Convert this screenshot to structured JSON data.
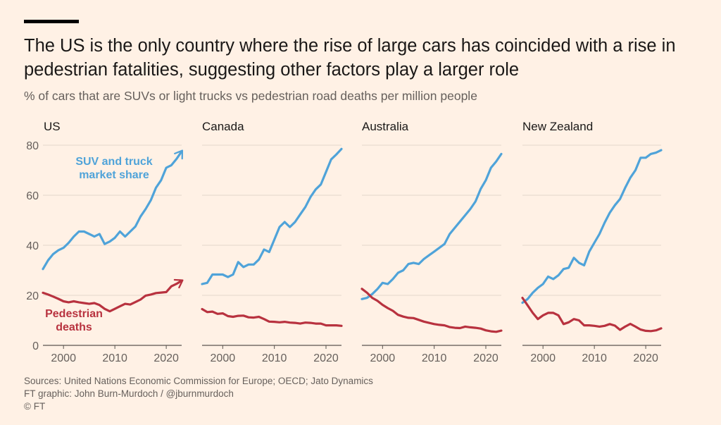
{
  "title": "The US is the only country where the rise of large cars has coincided with a rise in pedestrian fatalities, suggesting other factors play a larger role",
  "subtitle": "% of cars that are SUVs or light trucks vs pedestrian road deaths per million people",
  "footer": {
    "sources": "Sources: United Nations Economic Commission for Europe; OECD; Jato Dynamics",
    "credit": "FT graphic: John Burn-Murdoch / @jburnmurdoch",
    "copyright": "© FT"
  },
  "colors": {
    "suv": "#4FA3D9",
    "deaths": "#B8323F",
    "grid": "#E3D6CB",
    "axis": "#5A5550"
  },
  "chart_data": [
    {
      "type": "line",
      "title": "US",
      "xlim": [
        1996,
        2023
      ],
      "ylim": [
        0,
        80
      ],
      "yticks": [
        0,
        20,
        40,
        60,
        80
      ],
      "xticks": [
        2000,
        2010,
        2020
      ],
      "grid": true,
      "series": [
        {
          "name": "SUV and truck market share",
          "label": "SUV and truck market share",
          "color": "#4FA3D9",
          "arrow": true,
          "x": [
            1996,
            1997,
            1998,
            1999,
            2000,
            2001,
            2002,
            2003,
            2004,
            2005,
            2006,
            2007,
            2008,
            2009,
            2010,
            2011,
            2012,
            2013,
            2014,
            2015,
            2016,
            2017,
            2018,
            2019,
            2020,
            2021,
            2022,
            2023
          ],
          "values": [
            30.5,
            34,
            36.5,
            38,
            39,
            41,
            43.5,
            45.5,
            45.5,
            44.5,
            43.5,
            44.5,
            40.5,
            41.5,
            43,
            45.5,
            43.5,
            45.5,
            47.5,
            51.5,
            54.5,
            58,
            63,
            66,
            71,
            72,
            74.5,
            77.5
          ]
        },
        {
          "name": "Pedestrian deaths",
          "label": "Pedestrian deaths",
          "color": "#B8323F",
          "arrow": true,
          "x": [
            1996,
            1997,
            1998,
            1999,
            2000,
            2001,
            2002,
            2003,
            2004,
            2005,
            2006,
            2007,
            2008,
            2009,
            2010,
            2011,
            2012,
            2013,
            2014,
            2015,
            2016,
            2017,
            2018,
            2019,
            2020,
            2021,
            2022,
            2023
          ],
          "values": [
            21,
            20.3,
            19.5,
            18.6,
            17.6,
            17.2,
            17.6,
            17.2,
            16.9,
            16.6,
            16.9,
            16.1,
            14.6,
            13.6,
            14.6,
            15.6,
            16.6,
            16.3,
            17.3,
            18.3,
            19.9,
            20.3,
            20.9,
            21.1,
            21.3,
            23.6,
            24.6,
            25.8
          ]
        }
      ]
    },
    {
      "type": "line",
      "title": "Canada",
      "xlim": [
        1996,
        2023
      ],
      "ylim": [
        0,
        80
      ],
      "xticks": [
        2000,
        2010,
        2020
      ],
      "grid": true,
      "series": [
        {
          "name": "SUV and truck market share",
          "color": "#4FA3D9",
          "x": [
            1996,
            1997,
            1998,
            1999,
            2000,
            2001,
            2002,
            2003,
            2004,
            2005,
            2006,
            2007,
            2008,
            2009,
            2010,
            2011,
            2012,
            2013,
            2014,
            2015,
            2016,
            2017,
            2018,
            2019,
            2020,
            2021,
            2022,
            2023
          ],
          "values": [
            24.5,
            25,
            28.3,
            28.3,
            28.3,
            27.3,
            28.3,
            33.3,
            31.3,
            32.3,
            32.3,
            34.3,
            38.3,
            37.3,
            42.3,
            47.3,
            49.3,
            47.3,
            49.3,
            52.3,
            55.3,
            59.3,
            62.3,
            64.3,
            69.3,
            74.3,
            76.3,
            78.5
          ]
        },
        {
          "name": "Pedestrian deaths",
          "color": "#B8323F",
          "x": [
            1996,
            1997,
            1998,
            1999,
            2000,
            2001,
            2002,
            2003,
            2004,
            2005,
            2006,
            2007,
            2008,
            2009,
            2010,
            2011,
            2012,
            2013,
            2014,
            2015,
            2016,
            2017,
            2018,
            2019,
            2020,
            2021,
            2022,
            2023
          ],
          "values": [
            14.5,
            13.3,
            13.5,
            12.6,
            12.8,
            11.7,
            11.4,
            11.8,
            11.9,
            11.2,
            11.1,
            11.4,
            10.5,
            9.5,
            9.4,
            9.2,
            9.4,
            9.1,
            9,
            8.7,
            9.1,
            9,
            8.7,
            8.7,
            8,
            8,
            8,
            7.8
          ]
        }
      ]
    },
    {
      "type": "line",
      "title": "Australia",
      "xlim": [
        1996,
        2023
      ],
      "ylim": [
        0,
        80
      ],
      "xticks": [
        2000,
        2010,
        2020
      ],
      "grid": true,
      "series": [
        {
          "name": "SUV and truck market share",
          "color": "#4FA3D9",
          "x": [
            1996,
            1997,
            1998,
            1999,
            2000,
            2001,
            2002,
            2003,
            2004,
            2005,
            2006,
            2007,
            2008,
            2009,
            2010,
            2011,
            2012,
            2013,
            2014,
            2015,
            2016,
            2017,
            2018,
            2019,
            2020,
            2021,
            2022,
            2023
          ],
          "values": [
            18.5,
            19,
            20.5,
            22.5,
            25,
            24.5,
            26.5,
            29,
            30,
            32.5,
            33,
            32.5,
            34.5,
            36,
            37.5,
            39,
            40.5,
            44.5,
            47,
            49.5,
            52,
            54.5,
            57.5,
            62.5,
            66,
            71,
            73.5,
            76.5
          ]
        },
        {
          "name": "Pedestrian deaths",
          "color": "#B8323F",
          "x": [
            1996,
            1997,
            1998,
            1999,
            2000,
            2001,
            2002,
            2003,
            2004,
            2005,
            2006,
            2007,
            2008,
            2009,
            2010,
            2011,
            2012,
            2013,
            2014,
            2015,
            2016,
            2017,
            2018,
            2019,
            2020,
            2021,
            2022,
            2023
          ],
          "values": [
            22.6,
            21,
            19,
            17.8,
            16.2,
            14.9,
            13.8,
            12.2,
            11.5,
            11,
            10.9,
            10.2,
            9.5,
            9,
            8.5,
            8.2,
            8,
            7.3,
            7,
            6.9,
            7.5,
            7.2,
            7,
            6.7,
            6,
            5.6,
            5.4,
            5.9
          ]
        }
      ]
    },
    {
      "type": "line",
      "title": "New Zealand",
      "xlim": [
        1996,
        2023
      ],
      "ylim": [
        0,
        80
      ],
      "xticks": [
        2000,
        2010,
        2020
      ],
      "grid": true,
      "series": [
        {
          "name": "SUV and truck market share",
          "color": "#4FA3D9",
          "x": [
            1996,
            1997,
            1998,
            1999,
            2000,
            2001,
            2002,
            2003,
            2004,
            2005,
            2006,
            2007,
            2008,
            2009,
            2010,
            2011,
            2012,
            2013,
            2014,
            2015,
            2016,
            2017,
            2018,
            2019,
            2020,
            2021,
            2022,
            2023
          ],
          "values": [
            17,
            18.5,
            21,
            23,
            24.5,
            27.5,
            26.5,
            28,
            30.5,
            31,
            35,
            33,
            32,
            37.5,
            41,
            44.5,
            49,
            53,
            56,
            58.5,
            63,
            67,
            70,
            75,
            75,
            76.5,
            77,
            78
          ]
        },
        {
          "name": "Pedestrian deaths",
          "color": "#B8323F",
          "x": [
            1996,
            1997,
            1998,
            1999,
            2000,
            2001,
            2002,
            2003,
            2004,
            2005,
            2006,
            2007,
            2008,
            2009,
            2010,
            2011,
            2012,
            2013,
            2014,
            2015,
            2016,
            2017,
            2018,
            2019,
            2020,
            2021,
            2022,
            2023
          ],
          "values": [
            19,
            16,
            13,
            10.5,
            12,
            13,
            13,
            12,
            8.5,
            9.2,
            10.5,
            10,
            8,
            8,
            7.8,
            7.5,
            7.8,
            8.5,
            7.9,
            6.2,
            7.5,
            8.6,
            7.5,
            6.3,
            5.8,
            5.7,
            6,
            6.8
          ]
        }
      ]
    }
  ]
}
